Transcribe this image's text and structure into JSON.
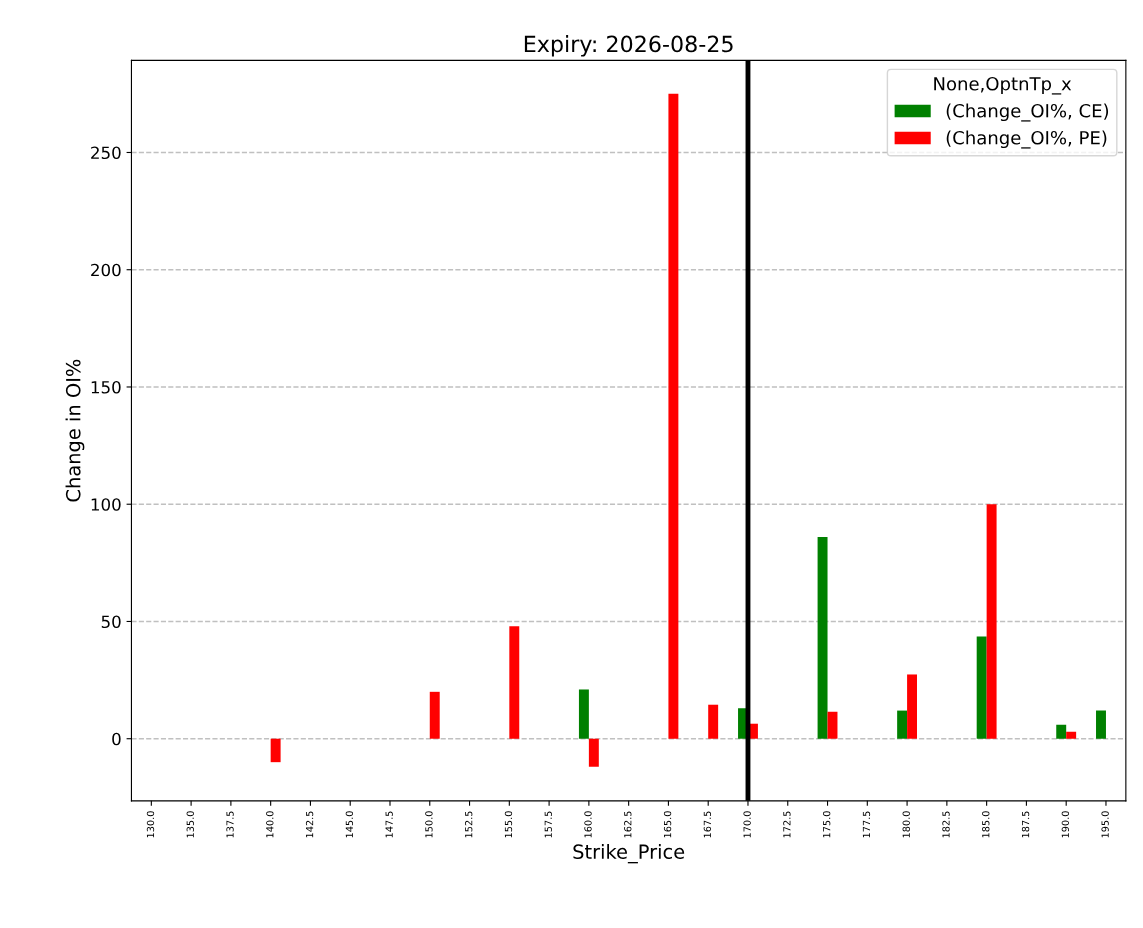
{
  "chart_data": {
    "type": "bar",
    "title": "Expiry: 2026-08-25",
    "xlabel": "Strike_Price",
    "ylabel": "Change in OI%",
    "legend_title": "None,OptnTp_x",
    "categories": [
      "130.0",
      "135.0",
      "137.5",
      "140.0",
      "142.5",
      "145.0",
      "147.5",
      "150.0",
      "152.5",
      "155.0",
      "157.5",
      "160.0",
      "162.5",
      "165.0",
      "167.5",
      "170.0",
      "172.5",
      "175.0",
      "177.5",
      "180.0",
      "182.5",
      "185.0",
      "187.5",
      "190.0",
      "195.0"
    ],
    "series": [
      {
        "name": "(Change_OI%, CE)",
        "color": "#008000",
        "values": [
          null,
          null,
          null,
          null,
          null,
          null,
          null,
          null,
          null,
          null,
          null,
          21,
          null,
          null,
          null,
          13,
          null,
          86,
          null,
          12,
          null,
          43.6,
          null,
          6,
          12
        ]
      },
      {
        "name": "(Change_OI%, PE)",
        "color": "#ff0000",
        "values": [
          null,
          null,
          null,
          -10,
          null,
          null,
          null,
          20,
          null,
          48,
          null,
          -12,
          null,
          275,
          14.5,
          6.4,
          null,
          11.5,
          null,
          27.4,
          null,
          100,
          null,
          3,
          null
        ]
      }
    ],
    "ylim": [
      -26.5,
      289.3
    ],
    "yticks": [
      0,
      50,
      100,
      150,
      200,
      250
    ],
    "ref_lines": [
      {
        "axis": "x",
        "value": "170.0",
        "color": "#000000",
        "line_style": "solid"
      }
    ],
    "grid": "y",
    "legend": "top right"
  }
}
